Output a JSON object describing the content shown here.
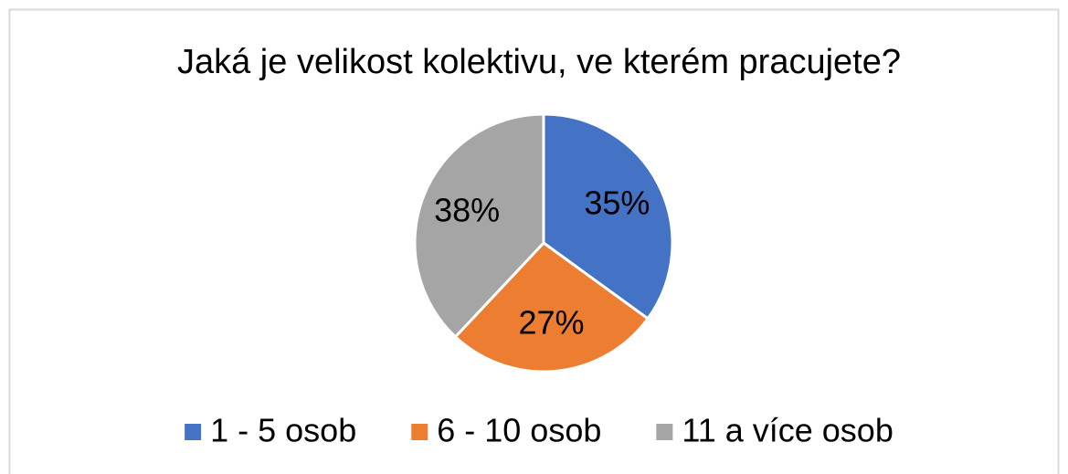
{
  "chart_data": {
    "type": "pie",
    "title": "Jaká je velikost kolektivu, ve kterém pracujete?",
    "categories": [
      "1 - 5 osob",
      "6 - 10 osob",
      "11 a více osob"
    ],
    "values": [
      35,
      27,
      38
    ],
    "value_labels": [
      "35%",
      "27%",
      "38%"
    ],
    "colors": [
      "#4472c4",
      "#ed7d31",
      "#a5a5a5"
    ],
    "legend": "bottom"
  }
}
